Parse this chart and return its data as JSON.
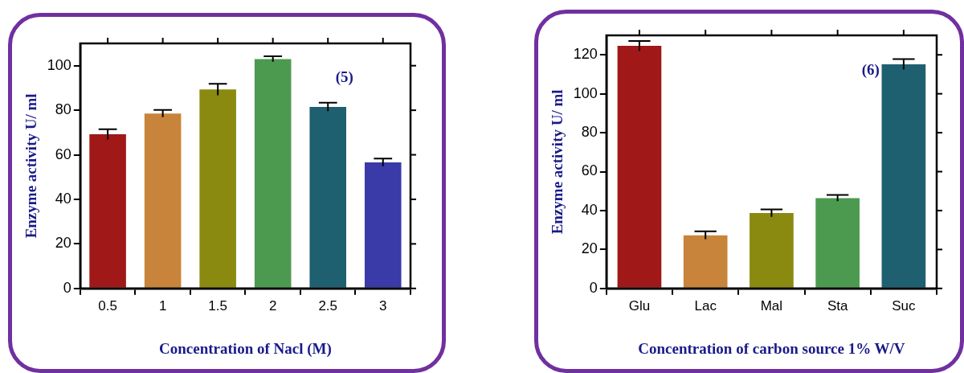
{
  "chart_data": [
    {
      "type": "bar",
      "ylabel": "Enzyme activity U/ ml",
      "xlabel": "Concentration of Nacl (M)",
      "categories": [
        "0.5",
        "1",
        "1.5",
        "2",
        "2.5",
        "3"
      ],
      "values": [
        69.2,
        78.5,
        89.3,
        103,
        81.5,
        56.6
      ],
      "errors": [
        2.3,
        1.6,
        2.6,
        1.2,
        1.9,
        1.7
      ],
      "colors": [
        "#a01818",
        "#c8843a",
        "#8a8a10",
        "#4c9a50",
        "#1f6070",
        "#3a3aa8"
      ],
      "ylim": [
        0,
        110
      ],
      "yticks": [
        0,
        20,
        40,
        60,
        80,
        100
      ],
      "grid": false,
      "legend": false,
      "annotations": [
        "(5)"
      ]
    },
    {
      "type": "bar",
      "ylabel": "Enzyme activity U/ ml",
      "xlabel": "Concentration of carbon source 1% W/V",
      "categories": [
        "Glu",
        "Lac",
        "Mal",
        "Sta",
        "Suc"
      ],
      "values": [
        124.6,
        27.3,
        38.7,
        46.4,
        115.1
      ],
      "errors": [
        2.5,
        2,
        1.9,
        1.6,
        2.7
      ],
      "colors": [
        "#a01818",
        "#c8843a",
        "#8a8a10",
        "#4c9a50",
        "#1f6070"
      ],
      "ylim": [
        0,
        130
      ],
      "yticks": [
        0,
        20,
        40,
        60,
        80,
        100,
        120
      ],
      "grid": false,
      "legend": false,
      "annotations": [
        "(6)"
      ]
    }
  ]
}
